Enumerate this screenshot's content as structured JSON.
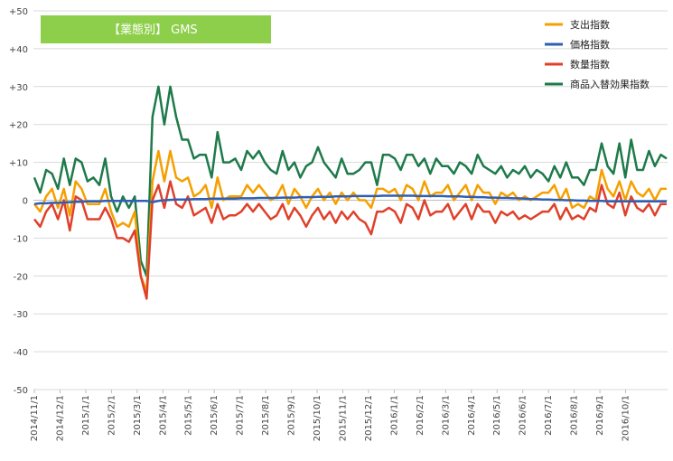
{
  "chart_data": {
    "type": "line",
    "title": "【業態別】 GMS",
    "ylim": [
      -50,
      50
    ],
    "yticks": [
      50,
      40,
      30,
      20,
      10,
      0,
      -10,
      -20,
      -30,
      -40,
      -50
    ],
    "ytick_labels": [
      "+50",
      "+40",
      "+30",
      "+20",
      "+10",
      "0",
      "-10",
      "-20",
      "-30",
      "-40",
      "-50"
    ],
    "xtick_labels": [
      "2014/11/1",
      "2014/12/1",
      "2015/1/1",
      "2015/2/1",
      "2015/3/1",
      "2015/4/1",
      "2015/5/1",
      "2015/6/1",
      "2015/7/1",
      "2015/8/1",
      "2015/9/1",
      "2015/10/1",
      "2015/11/1",
      "2015/12/1",
      "2016/1/1",
      "2016/2/1",
      "2016/3/1",
      "2016/4/1",
      "2016/5/1",
      "2016/6/1",
      "2016/7/1",
      "2016/8/1",
      "2016/9/1",
      "2016/10/1"
    ],
    "x_points_per_tick": 4.35,
    "legend_position": "top-right",
    "grid": "horizontal",
    "colors": {
      "支出指数": "#f5a000",
      "価格指数": "#2f5fb5",
      "数量指数": "#e0402a",
      "商品入替効果指数": "#1e7a4a",
      "title_bg": "#8dcf4a"
    },
    "series": [
      {
        "name": "支出指数",
        "values": [
          -1,
          -3,
          1,
          3,
          -2,
          3,
          -4,
          5,
          3,
          -1,
          -1,
          -1,
          3,
          -3,
          -7,
          -6,
          -7,
          -3,
          -20,
          -24,
          5,
          13,
          5,
          13,
          6,
          5,
          6,
          1,
          2,
          4,
          -2,
          6,
          0,
          1,
          1,
          1,
          4,
          2,
          4,
          2,
          0,
          1,
          4,
          -1,
          3,
          1,
          -2,
          1,
          3,
          0,
          2,
          -1,
          2,
          0,
          2,
          0,
          0,
          -2,
          3,
          3,
          2,
          3,
          0,
          4,
          3,
          0,
          5,
          1,
          2,
          2,
          4,
          0,
          2,
          4,
          0,
          4,
          2,
          2,
          -1,
          2,
          1,
          2,
          0,
          1,
          0,
          1,
          2,
          2,
          4,
          0,
          3,
          -2,
          -1,
          -2,
          1,
          0,
          8,
          3,
          1,
          5,
          0,
          5,
          2,
          1,
          3,
          0,
          3,
          3
        ]
      },
      {
        "name": "価格指数",
        "values": [
          -1,
          -0.8,
          -0.8,
          -0.7,
          -0.7,
          -0.6,
          -0.5,
          -0.4,
          -0.4,
          -0.3,
          -0.3,
          -0.3,
          -0.2,
          -0.2,
          -0.2,
          -0.2,
          -0.2,
          -0.2,
          -0.2,
          -0.2,
          -0.5,
          -0.2,
          0,
          0.1,
          0.2,
          0.2,
          0.2,
          0.3,
          0.3,
          0.3,
          0.4,
          0.4,
          0.4,
          0.4,
          0.4,
          0.5,
          0.5,
          0.5,
          0.6,
          0.6,
          0.6,
          0.6,
          0.7,
          0.7,
          0.7,
          0.8,
          0.8,
          0.8,
          0.9,
          0.9,
          0.9,
          1.0,
          1.0,
          1.0,
          1.1,
          1.1,
          1.1,
          1.1,
          1.1,
          1.2,
          1.2,
          1.2,
          1.2,
          1.2,
          1.2,
          1.1,
          1.1,
          1.1,
          1.1,
          1.1,
          1.0,
          1.0,
          1.0,
          0.9,
          0.9,
          0.8,
          0.8,
          0.7,
          0.7,
          0.6,
          0.6,
          0.5,
          0.5,
          0.4,
          0.3,
          0.3,
          0.2,
          0.2,
          0.1,
          0.1,
          0,
          0,
          -0.1,
          -0.1,
          -0.2,
          -0.2,
          -0.2,
          -0.3,
          -0.3,
          -0.3,
          -0.3,
          -0.3,
          -0.3,
          -0.3,
          -0.3,
          -0.3,
          -0.3,
          -0.3
        ]
      },
      {
        "name": "数量指数",
        "values": [
          -5,
          -7,
          -3,
          -1,
          -5,
          0,
          -8,
          1,
          0,
          -5,
          -5,
          -5,
          -2,
          -5,
          -10,
          -10,
          -11,
          -8,
          -20,
          -26,
          0,
          4,
          -2,
          5,
          -1,
          -2,
          1,
          -4,
          -3,
          -2,
          -6,
          -1,
          -5,
          -4,
          -4,
          -3,
          -1,
          -3,
          -1,
          -3,
          -5,
          -4,
          -1,
          -5,
          -2,
          -4,
          -7,
          -4,
          -2,
          -5,
          -3,
          -6,
          -3,
          -5,
          -3,
          -5,
          -6,
          -9,
          -3,
          -3,
          -2,
          -3,
          -6,
          -1,
          -2,
          -5,
          0,
          -4,
          -3,
          -3,
          -1,
          -5,
          -3,
          -1,
          -5,
          -1,
          -3,
          -3,
          -6,
          -3,
          -4,
          -3,
          -5,
          -4,
          -5,
          -4,
          -3,
          -3,
          -1,
          -5,
          -2,
          -5,
          -4,
          -5,
          -2,
          -3,
          4,
          -1,
          -2,
          2,
          -4,
          1,
          -2,
          -3,
          -1,
          -4,
          -1,
          -1
        ]
      },
      {
        "name": "商品入替効果指数",
        "values": [
          6,
          2,
          8,
          7,
          3,
          11,
          4,
          11,
          10,
          5,
          6,
          4,
          11,
          1,
          -3,
          1,
          -2,
          1,
          -16,
          -20,
          22,
          30,
          20,
          30,
          22,
          16,
          16,
          11,
          12,
          12,
          6,
          18,
          10,
          10,
          11,
          8,
          13,
          11,
          13,
          10,
          8,
          7,
          13,
          8,
          10,
          6,
          9,
          10,
          14,
          10,
          8,
          6,
          11,
          7,
          7,
          8,
          10,
          10,
          4,
          12,
          12,
          11,
          8,
          12,
          12,
          9,
          11,
          7,
          11,
          9,
          9,
          7,
          10,
          9,
          7,
          12,
          9,
          8,
          7,
          9,
          6,
          8,
          7,
          9,
          6,
          8,
          7,
          5,
          9,
          6,
          10,
          6,
          6,
          4,
          8,
          8,
          15,
          9,
          7,
          15,
          6,
          16,
          8,
          8,
          13,
          9,
          12,
          11
        ]
      }
    ]
  }
}
